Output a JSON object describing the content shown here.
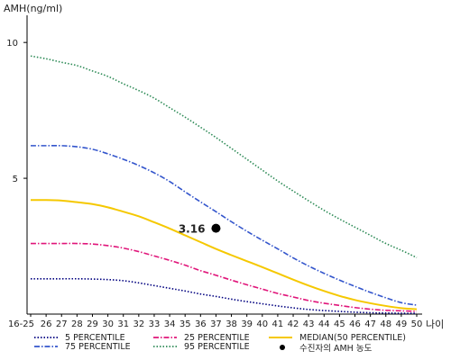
{
  "chart_data": {
    "type": "line",
    "ylabel": "AMH(ng/ml)",
    "xlabel": "나이",
    "ylim": [
      0,
      11
    ],
    "yticks": [
      5,
      10
    ],
    "categories": [
      "16-25",
      "26",
      "27",
      "28",
      "29",
      "30",
      "31",
      "32",
      "33",
      "34",
      "35",
      "36",
      "37",
      "38",
      "39",
      "40",
      "41",
      "42",
      "43",
      "44",
      "45",
      "46",
      "47",
      "48",
      "49",
      "50"
    ],
    "series": [
      {
        "name": "5 PERCENTILE",
        "color": "#00007f",
        "dash": "1.5,2",
        "values": [
          1.3,
          1.3,
          1.3,
          1.3,
          1.29,
          1.27,
          1.23,
          1.15,
          1.05,
          0.95,
          0.85,
          0.74,
          0.65,
          0.55,
          0.46,
          0.38,
          0.3,
          0.23,
          0.17,
          0.13,
          0.1,
          0.07,
          0.05,
          0.04,
          0.03,
          0.03
        ]
      },
      {
        "name": "25 PERCENTILE",
        "color": "#e0157a",
        "dash": "6,2,1.5,2",
        "values": [
          2.6,
          2.6,
          2.6,
          2.6,
          2.58,
          2.52,
          2.43,
          2.3,
          2.14,
          1.98,
          1.8,
          1.6,
          1.43,
          1.25,
          1.08,
          0.92,
          0.76,
          0.63,
          0.5,
          0.4,
          0.32,
          0.24,
          0.18,
          0.14,
          0.12,
          0.1
        ]
      },
      {
        "name": "MEDIAN(50 PERCENTILE)",
        "color": "#f5c800",
        "dash": "",
        "values": [
          4.2,
          4.2,
          4.18,
          4.12,
          4.05,
          3.93,
          3.77,
          3.6,
          3.38,
          3.15,
          2.9,
          2.65,
          2.4,
          2.17,
          1.95,
          1.73,
          1.5,
          1.27,
          1.05,
          0.85,
          0.67,
          0.52,
          0.4,
          0.3,
          0.22,
          0.18
        ]
      },
      {
        "name": "75 PERCENTILE",
        "color": "#3355cc",
        "dash": "6,2,1.5,2",
        "values": [
          6.2,
          6.2,
          6.2,
          6.16,
          6.07,
          5.9,
          5.7,
          5.47,
          5.2,
          4.88,
          4.5,
          4.13,
          3.77,
          3.4,
          3.05,
          2.72,
          2.4,
          2.07,
          1.77,
          1.5,
          1.25,
          1.02,
          0.8,
          0.6,
          0.42,
          0.33
        ]
      },
      {
        "name": "95 PERCENTILE",
        "color": "#2e8b57",
        "dash": "1.5,2",
        "values": [
          9.5,
          9.4,
          9.27,
          9.15,
          8.95,
          8.75,
          8.48,
          8.23,
          7.95,
          7.6,
          7.25,
          6.88,
          6.5,
          6.1,
          5.7,
          5.3,
          4.9,
          4.53,
          4.17,
          3.82,
          3.5,
          3.2,
          2.9,
          2.6,
          2.35,
          2.08
        ]
      }
    ],
    "patient": {
      "label": "수진자의 AMH 농도",
      "x": "37",
      "value": 3.16,
      "value_label": "3.16"
    },
    "legend": {
      "position": "bottom"
    },
    "grid": false
  }
}
